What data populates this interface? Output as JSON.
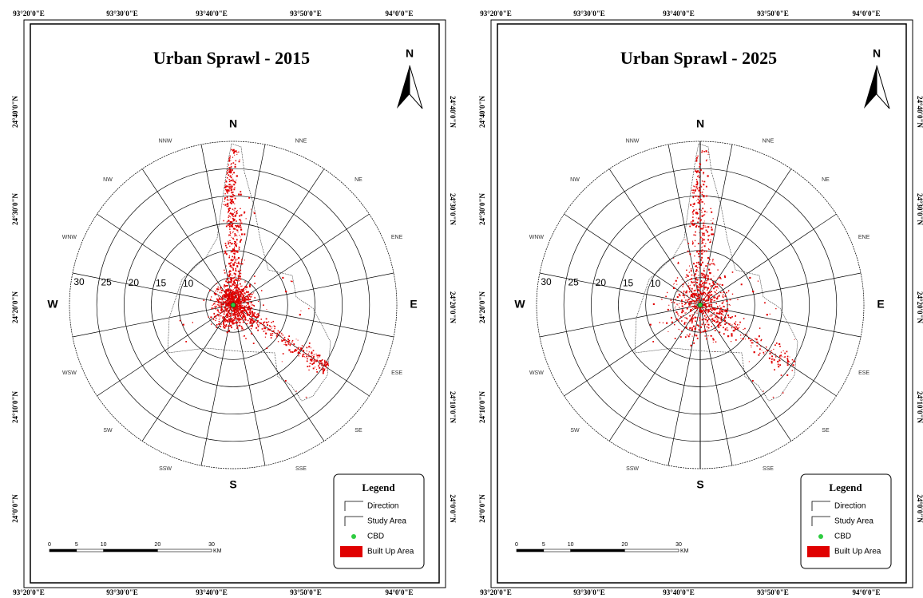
{
  "panels": [
    {
      "title": "Urban Sprawl - 2015"
    },
    {
      "title": "Urban Sprawl - 2025"
    }
  ],
  "x_labels": [
    "93°20'0\"E",
    "93°30'0\"E",
    "93°40'0\"E",
    "93°50'0\"E",
    "94°0'0\"E"
  ],
  "y_labels": [
    "24°40'0\"N",
    "24°30'0\"N",
    "24°20'0\"N",
    "24°10'0\"N",
    "24°0'0\"N"
  ],
  "north": "N",
  "directions": [
    "N",
    "NNE",
    "NE",
    "ENE",
    "E",
    "ESE",
    "SE",
    "SSE",
    "S",
    "SSW",
    "SW",
    "WSW",
    "W",
    "WNW",
    "NW",
    "NNW"
  ],
  "rings": [
    10,
    15,
    20,
    25,
    30
  ],
  "legend": {
    "title": "Legend",
    "items": [
      "Direction",
      "Study Area",
      "CBD",
      "Built Up Area"
    ]
  },
  "scale_bar": {
    "labels": [
      0,
      5,
      10,
      20,
      30
    ],
    "unit": "KM"
  }
}
